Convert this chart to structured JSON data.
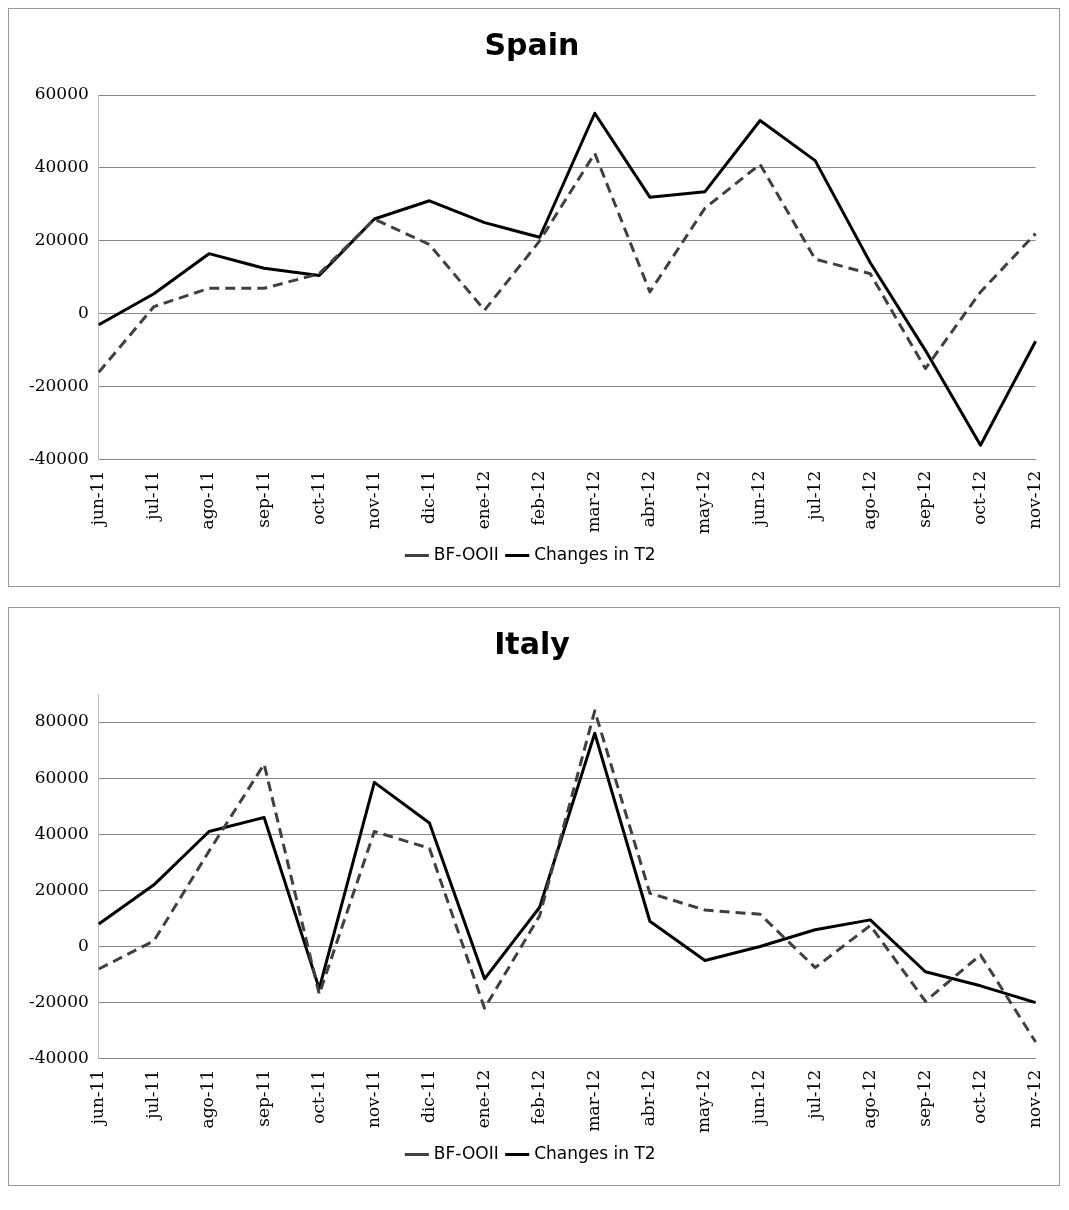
{
  "chart_data": [
    {
      "type": "line",
      "title": "Spain",
      "categories": [
        "jun-11",
        "jul-11",
        "ago-11",
        "sep-11",
        "oct-11",
        "nov-11",
        "dic-11",
        "ene-12",
        "feb-12",
        "mar-12",
        "abr-12",
        "may-12",
        "jun-12",
        "jul-12",
        "ago-12",
        "sep-12",
        "oct-12",
        "nov-12"
      ],
      "series": [
        {
          "name": "BF-OOII",
          "color": "#404040",
          "line_style": "dashed",
          "values": [
            -16000,
            2000,
            7000,
            7000,
            11000,
            26000,
            19000,
            1000,
            20000,
            44000,
            6000,
            29000,
            41000,
            15000,
            11000,
            -15000,
            6000,
            22000
          ]
        },
        {
          "name": "Changes in T2",
          "color": "#000000",
          "line_style": "solid",
          "values": [
            -3000,
            5500,
            16500,
            12500,
            10500,
            26000,
            31000,
            25000,
            21000,
            55000,
            32000,
            33500,
            53000,
            42000,
            14000,
            -10000,
            -36000,
            -7500
          ]
        }
      ],
      "ylim": [
        -40000,
        60000
      ],
      "yticks": [
        -40000,
        -20000,
        0,
        20000,
        40000,
        60000
      ],
      "grid": "y",
      "legend": "bottom",
      "marker": "none"
    },
    {
      "type": "line",
      "title": "Italy",
      "categories": [
        "jun-11",
        "jul-11",
        "ago-11",
        "sep-11",
        "oct-11",
        "nov-11",
        "dic-11",
        "ene-12",
        "feb-12",
        "mar-12",
        "abr-12",
        "may-12",
        "jun-12",
        "jul-12",
        "ago-12",
        "sep-12",
        "oct-12",
        "nov-12"
      ],
      "series": [
        {
          "name": "BF-OOII",
          "color": "#404040",
          "line_style": "dashed",
          "values": [
            -8000,
            2000,
            34000,
            65000,
            -17000,
            41000,
            35000,
            -22000,
            11000,
            84000,
            19000,
            13000,
            11500,
            -7500,
            7500,
            -19500,
            -3000,
            -34000
          ]
        },
        {
          "name": "Changes in T2",
          "color": "#000000",
          "line_style": "solid",
          "values": [
            8000,
            22000,
            41000,
            46000,
            -15000,
            58500,
            44000,
            -11500,
            14000,
            76000,
            9000,
            -5000,
            0,
            6000,
            9500,
            -9000,
            -14000,
            -20000
          ]
        }
      ],
      "ylim": [
        -40000,
        90000
      ],
      "yticks": [
        -40000,
        -20000,
        0,
        20000,
        40000,
        60000,
        80000
      ],
      "grid": "y",
      "legend": "bottom",
      "marker": "none"
    }
  ]
}
